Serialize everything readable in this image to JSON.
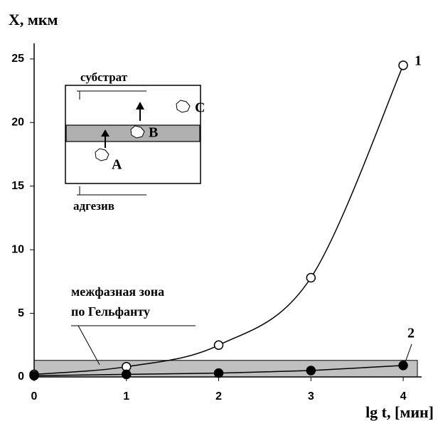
{
  "chart_data": {
    "type": "line",
    "y_label": "X, мкм",
    "x_label": "lg t, [мин]",
    "x": [
      0,
      1,
      2,
      3,
      4
    ],
    "series": [
      {
        "name": "1",
        "color": "#000000",
        "marker": "open",
        "smooth": true,
        "values": [
          0.2,
          0.8,
          2.5,
          7.8,
          24.5
        ]
      },
      {
        "name": "2",
        "color": "#000000",
        "marker": "filled",
        "smooth": false,
        "values": [
          0.1,
          0.2,
          0.3,
          0.5,
          0.9
        ]
      }
    ],
    "xlim": [
      0,
      4.2
    ],
    "ylim": [
      0,
      26
    ],
    "xticks": [
      0,
      1,
      2,
      3,
      4
    ],
    "yticks": [
      0,
      5,
      10,
      15,
      20,
      25
    ],
    "zone": {
      "lines": [
        "межфазная зона",
        "по Гельфанту"
      ],
      "ylim": [
        0,
        1.3
      ],
      "color": "#c0c0c0"
    },
    "inset": {
      "substrate": "субстрат",
      "adhesive": "адгезив",
      "points": [
        "A",
        "B",
        "C"
      ]
    }
  }
}
